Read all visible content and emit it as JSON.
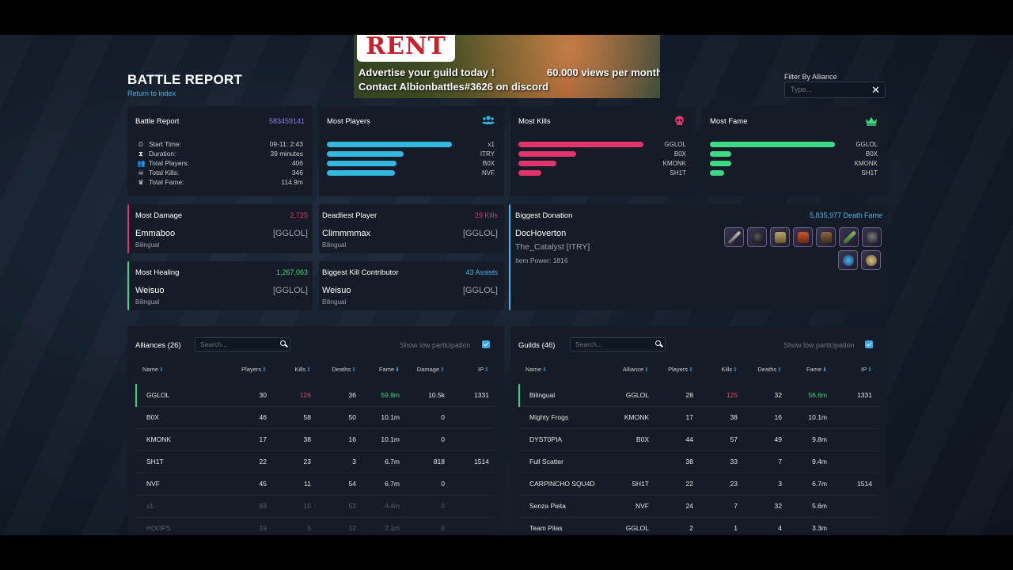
{
  "ad": {
    "rent": "RENT",
    "line1": "Advertise your guild today !",
    "line2": "60.000 views per month",
    "line3": "Contact Albionbattles#3626 on discord"
  },
  "header": {
    "title": "BATTLE REPORT",
    "return_link": "Return to index"
  },
  "filter": {
    "label": "Filter By Alliance",
    "placeholder": "Type...",
    "clear": "✕"
  },
  "battle": {
    "title": "Battle Report",
    "id": "583459141",
    "stats": [
      {
        "icon": "clock-icon",
        "glyph": "⏲",
        "label": "Start Time:",
        "value": "09-11: 2:43"
      },
      {
        "icon": "hourglass-icon",
        "glyph": "⧗",
        "label": "Duration:",
        "value": "39 minutes"
      },
      {
        "icon": "users-icon",
        "glyph": "👥",
        "label": "Total Players:",
        "value": "406"
      },
      {
        "icon": "skull-icon",
        "glyph": "☠",
        "label": "Total Kills:",
        "value": "346"
      },
      {
        "icon": "crown-icon",
        "glyph": "♛",
        "label": "Total Fame:",
        "value": "114.9m"
      }
    ]
  },
  "most_players": {
    "title": "Most Players",
    "icon": "users-icon",
    "color": "#35b8e0",
    "rows": [
      {
        "label": "x1",
        "value": 83
      },
      {
        "label": "ITRY",
        "value": 51
      },
      {
        "label": "B0X",
        "value": 46
      },
      {
        "label": "NVF",
        "value": 45
      }
    ]
  },
  "most_kills": {
    "title": "Most Kills",
    "icon": "skull-icon",
    "color": "#e0346a",
    "rows": [
      {
        "label": "GGLOL",
        "value": 126
      },
      {
        "label": "B0X",
        "value": 58
      },
      {
        "label": "KMONK",
        "value": 38
      },
      {
        "label": "SH1T",
        "value": 23
      }
    ]
  },
  "most_fame": {
    "title": "Most Fame",
    "icon": "crown-icon",
    "color": "#3fd884",
    "rows": [
      {
        "label": "GGLOL",
        "value": 59.9
      },
      {
        "label": "B0X",
        "value": 10.1
      },
      {
        "label": "KMONK",
        "value": 10.1
      },
      {
        "label": "SH1T",
        "value": 6.7
      }
    ]
  },
  "most_damage": {
    "title": "Most Damage",
    "value": "2,725",
    "name": "Emmaboo",
    "guild": "[GGLOL]",
    "sub": "Bilingual"
  },
  "deadliest": {
    "title": "Deadliest Player",
    "value": "29 Kills",
    "name": "Climmmmax",
    "guild": "[GGLOL]",
    "sub": "Bilingual"
  },
  "most_healing": {
    "title": "Most Healing",
    "value": "1,267,063",
    "name": "Weisuo",
    "guild": "[GGLOL]",
    "sub": "Bilingual"
  },
  "biggest_kill": {
    "title": "Biggest Kill Contributor",
    "value": "43 Assists",
    "name": "Weisuo",
    "guild": "[GGLOL]",
    "sub": "Bilingual"
  },
  "donation": {
    "title": "Biggest Donation",
    "value": "5,835,977 Death Fame",
    "name": "DocHoverton",
    "guild": "The_Catalyst [ITRY]",
    "ip": "Item Power: 1816",
    "items": [
      "sword-item-icon",
      "hood-item-icon",
      "armor-item-icon",
      "boots-item-icon",
      "cape-item-icon",
      "offhand-item-icon",
      "bag-item-icon",
      "potion-item-icon",
      "food-item-icon"
    ]
  },
  "alliances": {
    "title": "Alliances (26)",
    "search_placeholder": "Search...",
    "lowpart": "Show low participation",
    "headers": [
      "Name",
      "Players",
      "Kills",
      "Deaths",
      "Fame",
      "Damage",
      "IP"
    ],
    "rows": [
      [
        "GGLOL",
        "30",
        "126",
        "36",
        "59.9m",
        "10.5k",
        "1331"
      ],
      [
        "B0X",
        "46",
        "58",
        "50",
        "10.1m",
        "0",
        ""
      ],
      [
        "KMONK",
        "17",
        "38",
        "16",
        "10.1m",
        "0",
        ""
      ],
      [
        "SH1T",
        "22",
        "23",
        "3",
        "6.7m",
        "818",
        "1514"
      ],
      [
        "NVF",
        "45",
        "11",
        "54",
        "6.7m",
        "0",
        ""
      ],
      [
        "x1",
        "83",
        "15",
        "53",
        "4.4m",
        "0",
        ""
      ],
      [
        "HOOPS",
        "19",
        "5",
        "12",
        "2.1m",
        "0",
        ""
      ]
    ]
  },
  "guilds": {
    "title": "Guilds (46)",
    "search_placeholder": "Search...",
    "lowpart": "Show low participation",
    "headers": [
      "Name",
      "Alliance",
      "Players",
      "Kills",
      "Deaths",
      "Fame",
      "IP"
    ],
    "rows": [
      [
        "Bilingual",
        "GGLOL",
        "28",
        "125",
        "32",
        "56.6m",
        "1331"
      ],
      [
        "Mighty Frogs",
        "KMONK",
        "17",
        "38",
        "16",
        "10.1m",
        ""
      ],
      [
        "DYST0PIA",
        "B0X",
        "44",
        "57",
        "49",
        "9.8m",
        ""
      ],
      [
        "Full Scatter",
        "",
        "38",
        "33",
        "7",
        "9.4m",
        ""
      ],
      [
        "CARPINCHO SQU4D",
        "SH1T",
        "22",
        "23",
        "3",
        "6.7m",
        "1514"
      ],
      [
        "Senza Pieta",
        "NVF",
        "24",
        "7",
        "32",
        "5.6m",
        ""
      ],
      [
        "Team Pilas",
        "GGLOL",
        "2",
        "1",
        "4",
        "3.3m",
        ""
      ]
    ]
  }
}
